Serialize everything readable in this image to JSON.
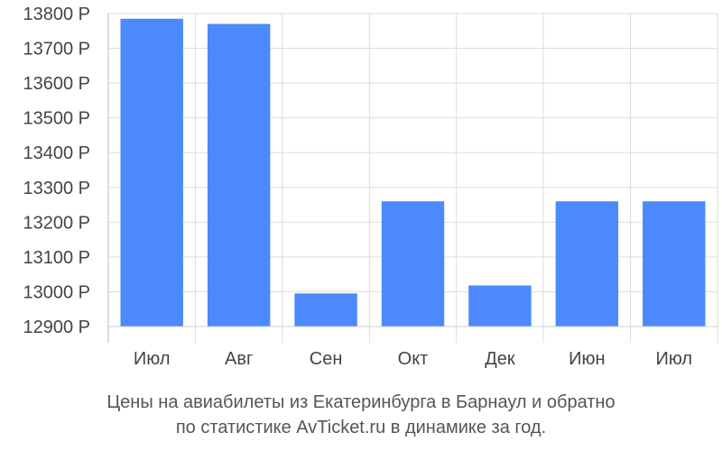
{
  "chart_data": {
    "type": "bar",
    "categories": [
      "Июл",
      "Авг",
      "Сен",
      "Окт",
      "Дек",
      "Июн",
      "Июл"
    ],
    "values": [
      13785,
      13770,
      12995,
      13260,
      13018,
      13260,
      13260
    ],
    "ylim": [
      12900,
      13800
    ],
    "yticks": [
      12900,
      13000,
      13100,
      13200,
      13300,
      13400,
      13500,
      13600,
      13700,
      13800
    ],
    "y_unit": "Р",
    "grid": true,
    "bar_color": "#4b89fc",
    "caption_line1": "Цены на авиабилеты из Екатеринбурга в Барнаул и обратно",
    "caption_line2": "по статистике AvTicket.ru в динамике за год."
  }
}
